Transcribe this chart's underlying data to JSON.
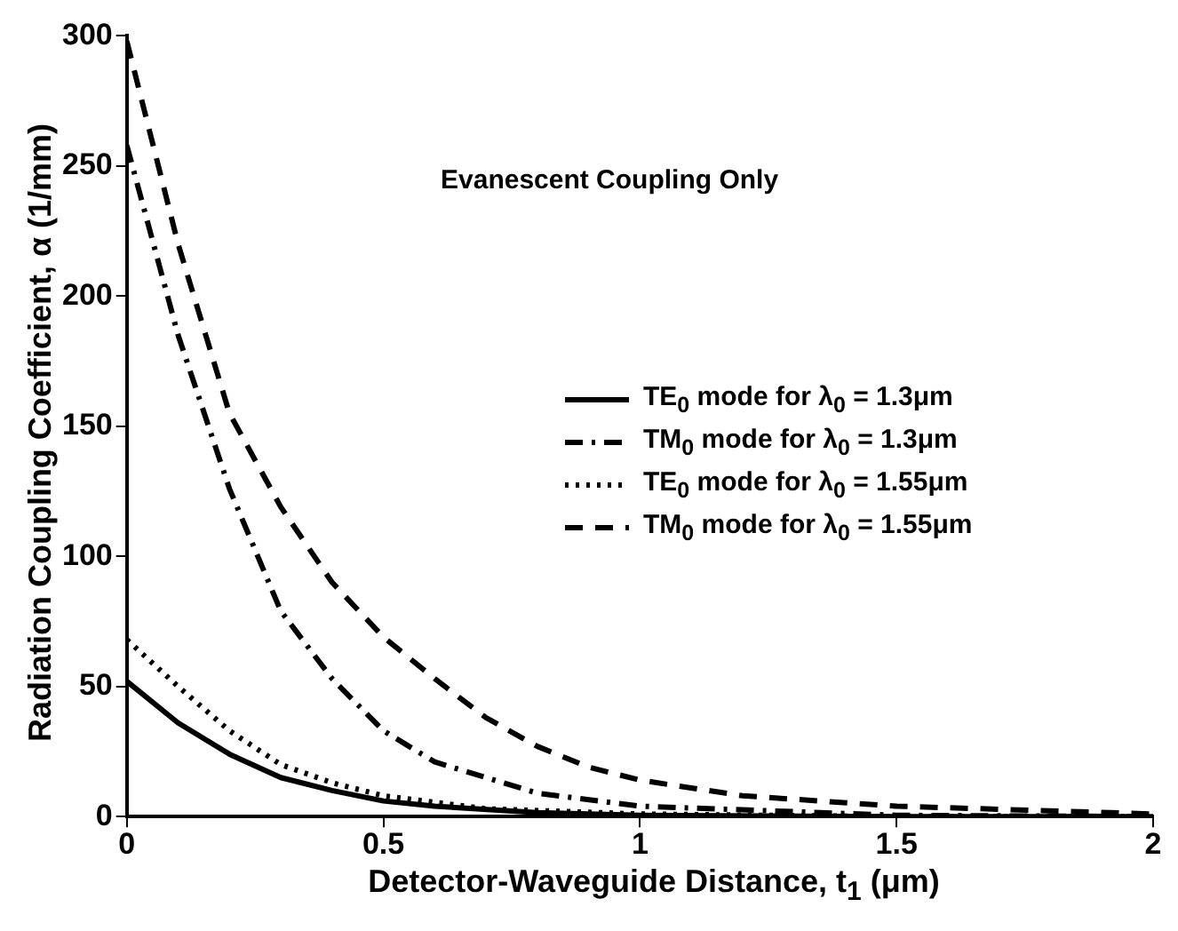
{
  "chart_data": {
    "type": "line",
    "xlabel": "Detector-Waveguide Distance, t$_{1}$ (μm)",
    "ylabel": "Radiation Coupling Coefficient, α (1/mm)",
    "annotations": [
      "Evanescent Coupling Only"
    ],
    "xlim": [
      0,
      2
    ],
    "xticks": [
      0,
      0.5,
      1,
      1.5,
      2
    ],
    "ylim": [
      0,
      300
    ],
    "yticks": [
      0,
      50,
      100,
      150,
      200,
      250,
      300
    ],
    "grid": false,
    "legend": "right",
    "marker": "none",
    "series": [
      {
        "name": "TE$_{0}$ mode for λ$_{0}$ = 1.3μm",
        "color": "#000000",
        "line_style": "solid",
        "x": [
          0,
          0.1,
          0.2,
          0.3,
          0.4,
          0.5,
          0.6,
          0.8,
          1,
          1.5,
          2
        ],
        "values": [
          52,
          36,
          24,
          15,
          10,
          6,
          4,
          1.5,
          0.5,
          0,
          0
        ]
      },
      {
        "name": "TM$_{0}$ mode for λ$_{0}$ = 1.3μm",
        "color": "#000000",
        "line_style": "dashdot",
        "x": [
          0,
          0.1,
          0.2,
          0.3,
          0.4,
          0.5,
          0.6,
          0.7,
          0.8,
          1,
          1.5,
          2
        ],
        "values": [
          258,
          185,
          126,
          79,
          53,
          33,
          21,
          15,
          9,
          4,
          0.5,
          0
        ]
      },
      {
        "name": "TE$_{0}$ mode for λ$_{0}$ = 1.55μm",
        "color": "#000000",
        "line_style": "dotted",
        "x": [
          0,
          0.1,
          0.2,
          0.3,
          0.4,
          0.5,
          0.7,
          1,
          1.5,
          2
        ],
        "values": [
          68,
          50,
          33,
          20,
          13,
          8,
          3,
          1,
          0,
          0
        ]
      },
      {
        "name": "TM$_{0}$ mode for λ$_{0}$ = 1.55μm",
        "color": "#000000",
        "line_style": "dashed",
        "x": [
          0,
          0.1,
          0.2,
          0.3,
          0.4,
          0.5,
          0.6,
          0.7,
          0.8,
          0.9,
          1,
          1.2,
          1.5,
          2
        ],
        "values": [
          298,
          220,
          155,
          119,
          90,
          69,
          53,
          38,
          27,
          19,
          14,
          8,
          4,
          1
        ]
      }
    ]
  }
}
